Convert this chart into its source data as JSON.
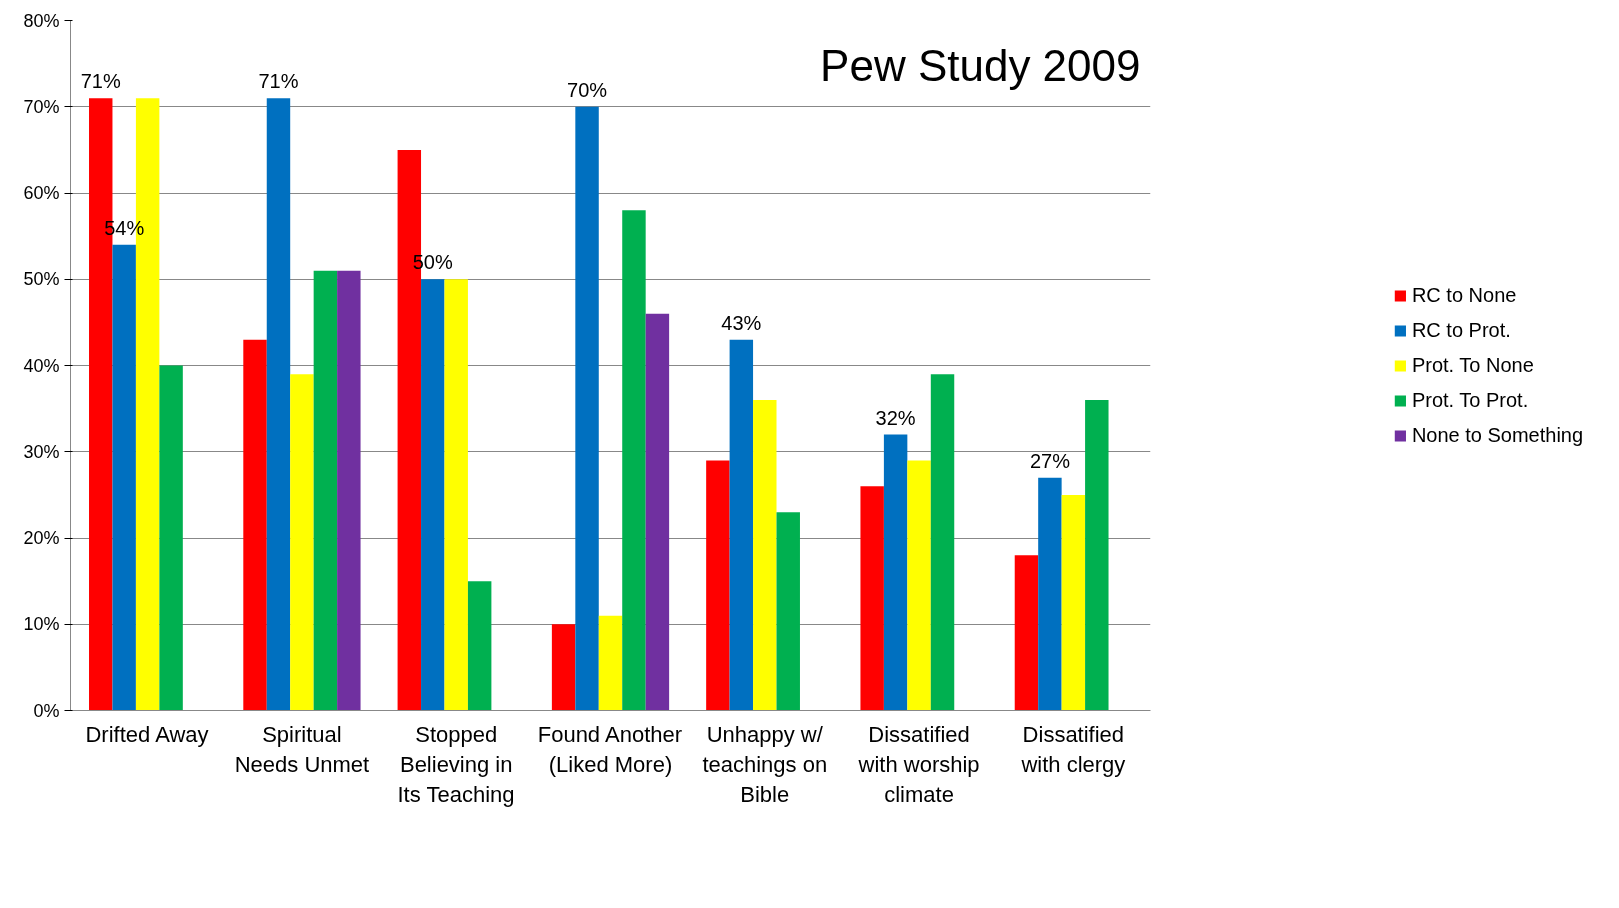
{
  "chart_data": {
    "type": "bar",
    "title": "Pew Study 2009",
    "categories": [
      "Drifted Away",
      "Spiritual Needs Unmet",
      "Stopped Believing in Its Teaching",
      "Found Another (Liked More)",
      "Unhappy w/ teachings on Bible",
      "Dissatified with worship climate",
      "Dissatified with clergy"
    ],
    "series": [
      {
        "name": "RC to None",
        "color": "#ff0000",
        "values": [
          71,
          43,
          65,
          10,
          29,
          26,
          18
        ],
        "value_labels": [
          "71%",
          null,
          null,
          null,
          null,
          null,
          null
        ]
      },
      {
        "name": "RC to Prot.",
        "color": "#0070c0",
        "values": [
          54,
          71,
          50,
          70,
          43,
          32,
          27
        ],
        "value_labels": [
          "54%",
          "71%",
          "50%",
          "70%",
          "43%",
          "32%",
          "27%"
        ]
      },
      {
        "name": "Prot. To None",
        "color": "#ffff00",
        "values": [
          71,
          39,
          50,
          11,
          36,
          29,
          25
        ]
      },
      {
        "name": "Prot. To Prot.",
        "color": "#00b050",
        "values": [
          40,
          51,
          15,
          58,
          23,
          39,
          36
        ]
      },
      {
        "name": "None to Something",
        "color": "#7030a0",
        "values": [
          null,
          51,
          null,
          46,
          null,
          null,
          null
        ]
      }
    ],
    "ylim": [
      0,
      80
    ],
    "yticks": [
      {
        "value": 0,
        "label": "0%"
      },
      {
        "value": 10,
        "label": "10%"
      },
      {
        "value": 20,
        "label": "20%"
      },
      {
        "value": 30,
        "label": "30%"
      },
      {
        "value": 40,
        "label": "40%"
      },
      {
        "value": 50,
        "label": "50%"
      },
      {
        "value": 60,
        "label": "60%"
      },
      {
        "value": 70,
        "label": "70%"
      },
      {
        "value": 80,
        "label": "80%"
      }
    ],
    "grid": "y",
    "legend": "right"
  }
}
